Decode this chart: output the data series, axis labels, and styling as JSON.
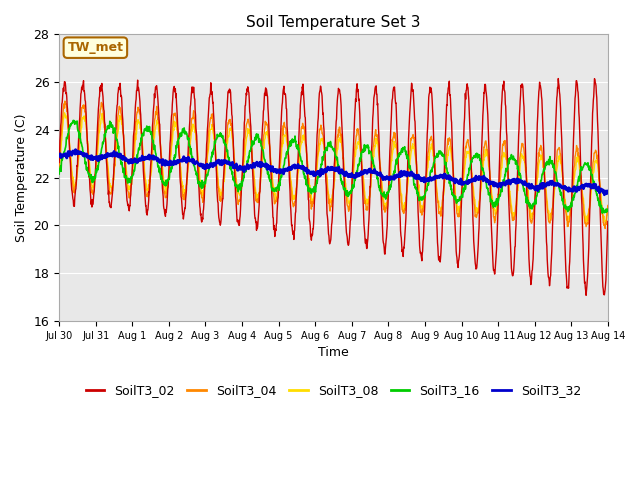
{
  "title": "Soil Temperature Set 3",
  "xlabel": "Time",
  "ylabel": "Soil Temperature (C)",
  "ylim": [
    16,
    28
  ],
  "background_color": "#e8e8e8",
  "annotation_text": "TW_met",
  "annotation_bg": "#ffffdd",
  "annotation_border": "#aa6600",
  "series_colors": {
    "SoilT3_02": "#cc0000",
    "SoilT3_04": "#ff8800",
    "SoilT3_08": "#ffdd00",
    "SoilT3_16": "#00cc00",
    "SoilT3_32": "#0000cc"
  },
  "tick_labels": [
    "Jul 30",
    "Jul 31",
    "Aug 1",
    "Aug 2",
    "Aug 3",
    "Aug 4",
    "Aug 5",
    "Aug 6",
    "Aug 7",
    "Aug 8",
    "Aug 9",
    "Aug 10",
    "Aug 11",
    "Aug 12",
    "Aug 13",
    "Aug 14"
  ],
  "yticks": [
    16,
    18,
    20,
    22,
    24,
    26,
    28
  ]
}
